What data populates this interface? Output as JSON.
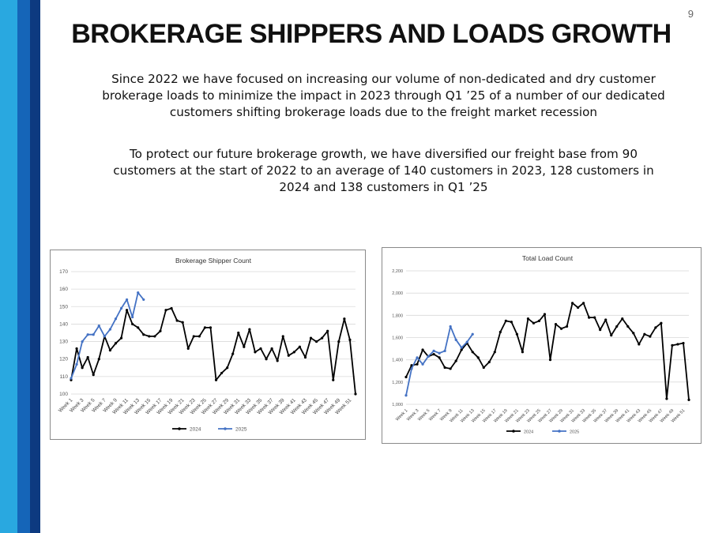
{
  "page_number": "9",
  "title": "BROKERAGE SHIPPERS AND LOADS GROWTH",
  "paragraphs": [
    "Since 2022 we have focused on increasing our volume of non-dedicated and dry customer brokerage loads to minimize the impact in 2023 through Q1 ’25 of a number of our dedicated customers shifting brokerage loads due to the freight market recession",
    "To protect our future brokerage growth, we have diversified our freight base from 90 customers at the start of 2022 to an average of 140 customers in 2023, 128 customers in 2024 and 138 customers in Q1 ’25"
  ],
  "colors": {
    "series_2024": "#000000",
    "series_2025": "#4472c4",
    "stripe_light": "#29a8e0",
    "stripe_mid": "#1565b8",
    "stripe_dark": "#0d3a80"
  },
  "chart_data": [
    {
      "type": "line",
      "title": "Brokerage Shipper Count",
      "xlabel": "",
      "ylabel": "",
      "ylim": [
        100,
        170
      ],
      "yticks": [
        "100",
        "110",
        "120",
        "130",
        "140",
        "150",
        "160",
        "170"
      ],
      "x_tick_labels": [
        "Week 1",
        "Week 3",
        "Week 5",
        "Week 7",
        "Week 9",
        "Week 11",
        "Week 13",
        "Week 15",
        "Week 17",
        "Week 19",
        "Week 21",
        "Week 23",
        "Week 25",
        "Week 27",
        "Week 29",
        "Week 31",
        "Week 33",
        "Week 35",
        "Week 37",
        "Week 39",
        "Week 41",
        "Week 43",
        "Week 45",
        "Week 47",
        "Week 49",
        "Week 51"
      ],
      "grid": true,
      "legend_position": "bottom",
      "series": [
        {
          "name": "2024",
          "values": [
            108,
            126,
            115,
            121,
            111,
            120,
            133,
            125,
            129,
            132,
            148,
            140,
            138,
            134,
            133,
            133,
            136,
            148,
            149,
            142,
            141,
            126,
            133,
            133,
            138,
            138,
            108,
            112,
            115,
            123,
            135,
            127,
            137,
            124,
            126,
            120,
            126,
            119,
            133,
            122,
            124,
            127,
            121,
            132,
            130,
            132,
            136,
            108,
            130,
            143,
            131,
            100
          ]
        },
        {
          "name": "2025",
          "values": [
            109,
            117,
            130,
            134,
            134,
            139,
            133,
            137,
            143,
            149,
            154,
            144,
            158,
            154
          ]
        }
      ]
    },
    {
      "type": "line",
      "title": "Total Load Count",
      "xlabel": "",
      "ylabel": "",
      "ylim": [
        1000,
        2200
      ],
      "yticks": [
        "1,000",
        "1,200",
        "1,400",
        "1,600",
        "1,800",
        "2,000",
        "2,200"
      ],
      "x_tick_labels": [
        "Week 1",
        "Week 3",
        "Week 5",
        "Week 7",
        "Week 9",
        "Week 11",
        "Week 13",
        "Week 15",
        "Week 17",
        "Week 19",
        "Week 21",
        "Week 23",
        "Week 25",
        "Week 27",
        "Week 29",
        "Week 31",
        "Week 33",
        "Week 35",
        "Week 37",
        "Week 39",
        "Week 41",
        "Week 43",
        "Week 45",
        "Week 47",
        "Week 49",
        "Week 51"
      ],
      "grid": true,
      "legend_position": "bottom",
      "series": [
        {
          "name": "2024",
          "values": [
            1245,
            1350,
            1360,
            1490,
            1430,
            1450,
            1420,
            1330,
            1320,
            1390,
            1490,
            1550,
            1470,
            1420,
            1330,
            1380,
            1470,
            1650,
            1750,
            1740,
            1630,
            1470,
            1770,
            1730,
            1750,
            1810,
            1400,
            1720,
            1680,
            1700,
            1910,
            1870,
            1910,
            1780,
            1780,
            1670,
            1760,
            1620,
            1700,
            1770,
            1700,
            1640,
            1540,
            1630,
            1610,
            1690,
            1730,
            1050,
            1530,
            1540,
            1550,
            1040
          ]
        },
        {
          "name": "2025",
          "values": [
            1080,
            1320,
            1420,
            1360,
            1430,
            1480,
            1460,
            1480,
            1700,
            1580,
            1510,
            1560,
            1630
          ]
        }
      ]
    }
  ]
}
